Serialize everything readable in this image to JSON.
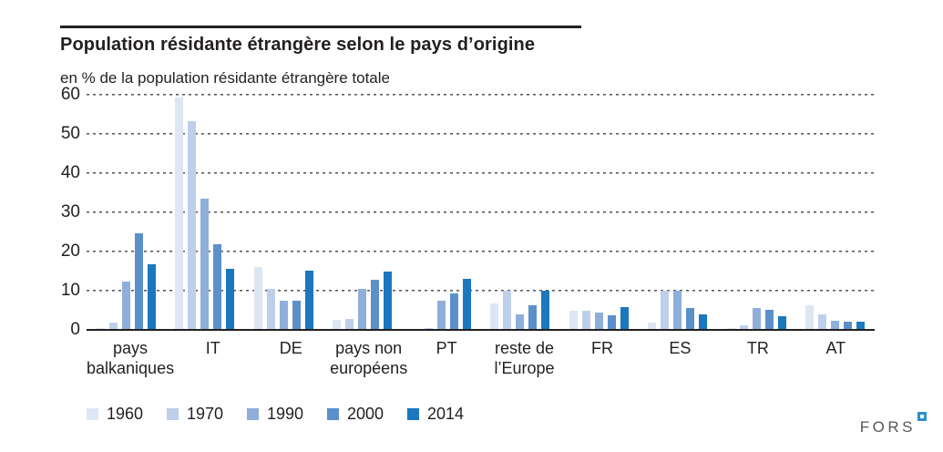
{
  "header": {
    "title": "Population résidante étrangère selon le pays d’origine",
    "subtitle": "en % de la population résidante étrangère totale"
  },
  "chart_data": {
    "type": "bar",
    "title": "Population résidante étrangère selon le pays d’origine",
    "subtitle_unit": "en % de la population résidante étrangère totale",
    "categories": [
      "pays balkaniques",
      "IT",
      "DE",
      "pays non européens",
      "PT",
      "reste de l’Europe",
      "FR",
      "ES",
      "TR",
      "AT"
    ],
    "series": [
      {
        "name": "1960",
        "color": "#dde6f3",
        "values": [
          0.4,
          59.4,
          16.0,
          2.6,
          0.3,
          6.8,
          5.0,
          1.9,
          0.4,
          6.2
        ]
      },
      {
        "name": "1970",
        "color": "#bdcfea",
        "values": [
          1.9,
          53.3,
          10.5,
          2.7,
          0.5,
          10.0,
          5.0,
          10.0,
          1.1,
          3.9
        ]
      },
      {
        "name": "1990",
        "color": "#8fafda",
        "values": [
          12.3,
          33.6,
          7.4,
          10.5,
          7.4,
          3.9,
          4.4,
          10.1,
          5.7,
          2.4
        ]
      },
      {
        "name": "2000",
        "color": "#5c90ca",
        "values": [
          24.6,
          21.9,
          7.5,
          12.8,
          9.3,
          6.2,
          3.8,
          5.6,
          5.2,
          2.0
        ]
      },
      {
        "name": "2014",
        "color": "#1b78be",
        "values": [
          16.7,
          15.7,
          15.1,
          14.9,
          13.0,
          10.0,
          5.8,
          4.0,
          3.4,
          2.1
        ]
      }
    ],
    "ylim": [
      0,
      60
    ],
    "yticks": [
      0,
      10,
      20,
      30,
      40,
      50,
      60
    ],
    "grid": "horizontal-dotted",
    "legend_position": "bottom-left",
    "axis_color": "#231f20",
    "gridline_color": "#5b5c5e"
  },
  "footer": {
    "logo_text": "FORS"
  }
}
